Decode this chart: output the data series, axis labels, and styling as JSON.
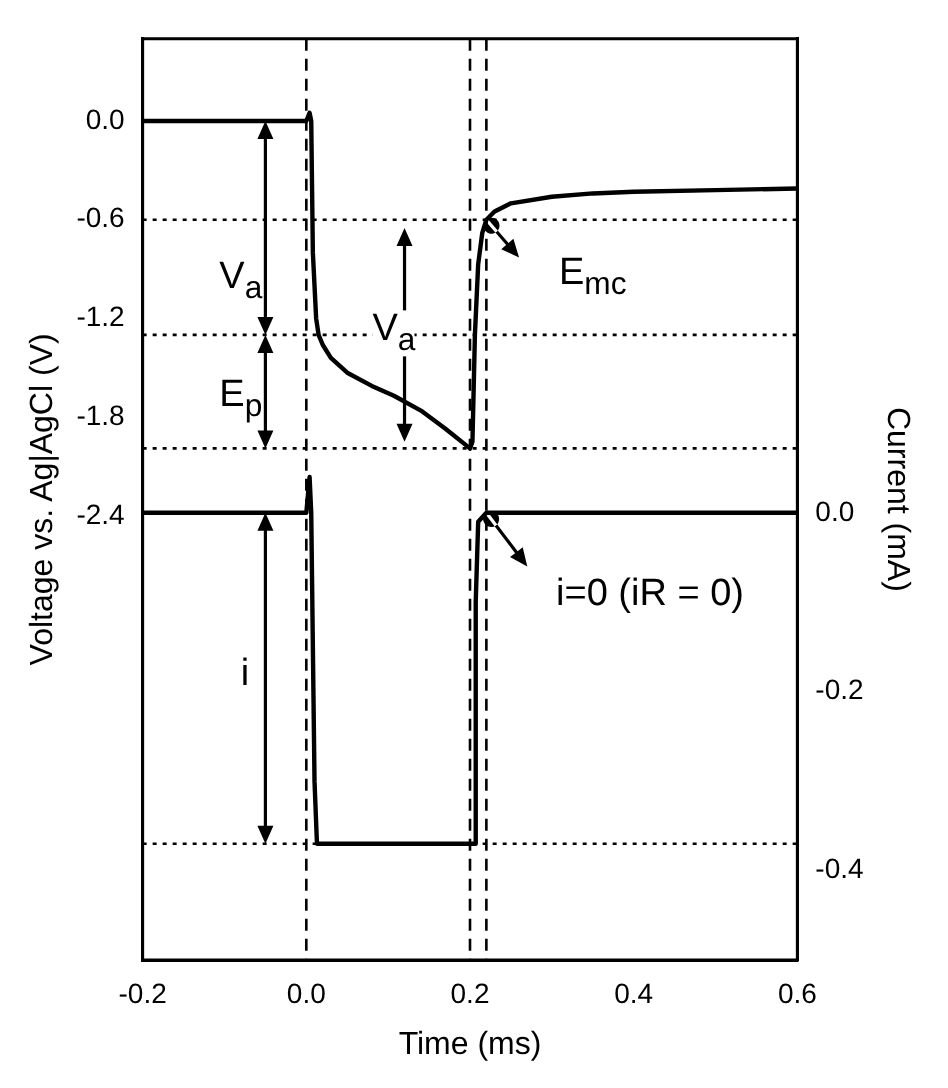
{
  "chart_data": {
    "type": "line",
    "xlabel": "Time (ms)",
    "ylabel": "Voltage vs. Ag|AgCl (V)",
    "y2label": "Current (mA)",
    "xlim": [
      -0.2,
      0.6
    ],
    "xticks": [
      -0.2,
      {
        "value": 0,
        "label": "0.0"
      },
      0.2,
      0.4,
      0.6
    ],
    "ylim": [
      -5.1,
      0.5
    ],
    "yticks": [
      {
        "value": 0,
        "label": "0.0"
      },
      -0.6,
      -1.2,
      -1.8,
      -2.4
    ],
    "y2lim": [
      -0.5,
      0.53
    ],
    "y2ticks": [
      {
        "value": 0,
        "label": "0.0"
      },
      -0.2,
      -0.4
    ],
    "grid": false,
    "legend": false,
    "marker": "none",
    "series": [
      {
        "color": "#000000",
        "x": [
          -0.2,
          0.0,
          0.004,
          0.006,
          0.008,
          0.012,
          0.015,
          0.02,
          0.03,
          0.05,
          0.08,
          0.107,
          0.14,
          0.17,
          0.2,
          0.203,
          0.206,
          0.21,
          0.215,
          0.22,
          0.23,
          0.25,
          0.3,
          0.35,
          0.4,
          0.5,
          0.6
        ],
        "values": [
          0.0,
          0.0,
          0.05,
          0.0,
          -0.8,
          -1.2,
          -1.3,
          -1.36,
          -1.44,
          -1.53,
          -1.61,
          -1.67,
          -1.76,
          -1.87,
          -1.99,
          -1.95,
          -1.3,
          -0.87,
          -0.68,
          -0.6,
          -0.55,
          -0.5,
          -0.46,
          -0.44,
          -0.43,
          -0.42,
          -0.41
        ]
      },
      {
        "axis": "y2",
        "color": "#000000",
        "x": [
          -0.2,
          0.0,
          0.004,
          0.006,
          0.01,
          0.013,
          0.2,
          0.205,
          0.207,
          0.21,
          0.22,
          0.6
        ],
        "values": [
          0.0,
          0.0,
          0.04,
          0.0,
          -0.3,
          -0.37,
          -0.37,
          -0.37,
          -0.1,
          -0.01,
          0.0,
          0.0
        ]
      }
    ],
    "ref_lines": [
      {
        "axis": "x",
        "value": 0.0,
        "line_style": "dashed",
        "color": "#000000"
      },
      {
        "axis": "x",
        "value": 0.2,
        "line_style": "dashed",
        "color": "#000000"
      },
      {
        "axis": "x",
        "value": 0.22,
        "line_style": "dashed",
        "color": "#000000"
      },
      {
        "axis": "y",
        "value": -0.6,
        "line_style": "dotted",
        "color": "#000000"
      },
      {
        "axis": "y",
        "value": -1.3,
        "line_style": "dotted",
        "color": "#000000"
      },
      {
        "axis": "y",
        "value": -1.99,
        "line_style": "dotted",
        "color": "#000000"
      },
      {
        "axis": "y2",
        "value": -0.37,
        "line_style": "dotted",
        "color": "#000000"
      }
    ],
    "annotations": [
      {
        "text": "V$_{a}$",
        "x": -0.08,
        "y": -0.98
      },
      {
        "text": "E$_{p}$",
        "x": -0.08,
        "y": -1.7
      },
      {
        "text": "V$_{a}$",
        "x": 0.107,
        "y": -1.29
      },
      {
        "text": "E$_{mc}$",
        "x": 0.35,
        "y": -0.95
      },
      "i",
      "i=0 (iR = 0)"
    ]
  }
}
